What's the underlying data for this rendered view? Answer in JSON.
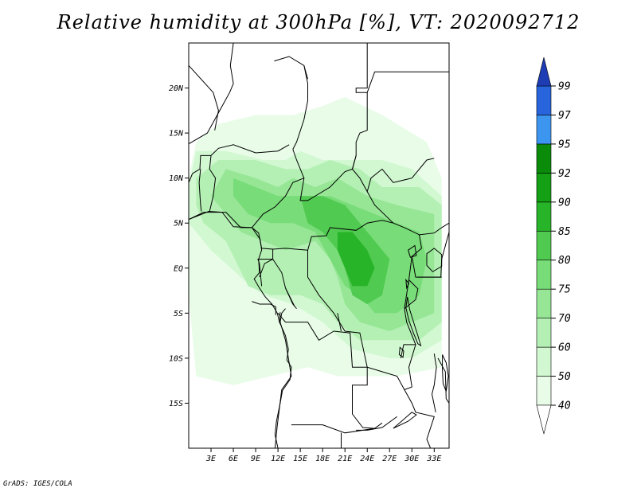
{
  "title": "Relative humidity at 300hPa [%], VT: 2020092712",
  "credit": "GrADS: IGES/COLA",
  "map": {
    "lon_range": [
      0,
      35
    ],
    "lat_range": [
      -20,
      25
    ],
    "lat_ticks": [
      {
        "value": 20,
        "label": "20N"
      },
      {
        "value": 15,
        "label": "15N"
      },
      {
        "value": 10,
        "label": "10N"
      },
      {
        "value": 5,
        "label": "5N"
      },
      {
        "value": 0,
        "label": "EQ"
      },
      {
        "value": -5,
        "label": "5S"
      },
      {
        "value": -10,
        "label": "10S"
      },
      {
        "value": -15,
        "label": "15S"
      }
    ],
    "lon_ticks": [
      {
        "value": 3,
        "label": "3E"
      },
      {
        "value": 6,
        "label": "6E"
      },
      {
        "value": 9,
        "label": "9E"
      },
      {
        "value": 12,
        "label": "12E"
      },
      {
        "value": 15,
        "label": "15E"
      },
      {
        "value": 18,
        "label": "18E"
      },
      {
        "value": 21,
        "label": "21E"
      },
      {
        "value": 24,
        "label": "24E"
      },
      {
        "value": 27,
        "label": "27E"
      },
      {
        "value": 30,
        "label": "30E"
      },
      {
        "value": 33,
        "label": "33E"
      }
    ]
  },
  "colorbar": {
    "labels": [
      "40",
      "50",
      "60",
      "70",
      "75",
      "80",
      "85",
      "90",
      "92",
      "95",
      "97",
      "99"
    ],
    "colors": [
      "#ffffff",
      "#e8fce8",
      "#d2f8d2",
      "#b4f0b4",
      "#96e696",
      "#78dc78",
      "#50ca50",
      "#28b428",
      "#14a014",
      "#0a8c0a",
      "#3c96f0",
      "#2864dc",
      "#1e3cb4"
    ]
  },
  "humidity_regions": [
    {
      "level": 1,
      "points": [
        [
          1,
          14
        ],
        [
          4,
          16
        ],
        [
          9,
          17
        ],
        [
          14,
          17
        ],
        [
          18,
          18
        ],
        [
          21,
          19
        ],
        [
          26,
          17
        ],
        [
          32,
          14
        ],
        [
          34,
          10
        ],
        [
          34,
          -11
        ],
        [
          28,
          -12
        ],
        [
          24,
          -12
        ],
        [
          20,
          -12
        ],
        [
          16,
          -11
        ],
        [
          11,
          -12
        ],
        [
          6,
          -13
        ],
        [
          1,
          -12
        ],
        [
          0,
          -3
        ],
        [
          0,
          10
        ]
      ]
    },
    {
      "level": 2,
      "points": [
        [
          1,
          13
        ],
        [
          5,
          13
        ],
        [
          10,
          12
        ],
        [
          13,
          12
        ],
        [
          15,
          13
        ],
        [
          18,
          12
        ],
        [
          22,
          12
        ],
        [
          26,
          12
        ],
        [
          30,
          11
        ],
        [
          34,
          8
        ],
        [
          34,
          -8
        ],
        [
          30,
          -10
        ],
        [
          27,
          -10
        ],
        [
          22,
          -9
        ],
        [
          18,
          -6
        ],
        [
          14,
          -4
        ],
        [
          10,
          -3
        ],
        [
          7,
          -1
        ],
        [
          3,
          2
        ],
        [
          0,
          5
        ],
        [
          0,
          9
        ]
      ]
    },
    {
      "level": 3,
      "points": [
        [
          4,
          12
        ],
        [
          9,
          12
        ],
        [
          13,
          11
        ],
        [
          16,
          11
        ],
        [
          19,
          12
        ],
        [
          23,
          11
        ],
        [
          26,
          9
        ],
        [
          31,
          9
        ],
        [
          34,
          7
        ],
        [
          34,
          -6
        ],
        [
          31,
          -8
        ],
        [
          27,
          -8
        ],
        [
          23,
          -8
        ],
        [
          20,
          -6
        ],
        [
          18,
          -4
        ],
        [
          15,
          -3
        ],
        [
          11,
          -3
        ],
        [
          8,
          -2
        ],
        [
          5,
          3
        ],
        [
          2,
          5
        ],
        [
          1,
          7
        ],
        [
          1,
          10
        ]
      ]
    },
    {
      "level": 4,
      "points": [
        [
          5,
          11
        ],
        [
          9,
          10
        ],
        [
          12,
          9
        ],
        [
          14,
          10
        ],
        [
          17,
          9
        ],
        [
          20,
          10
        ],
        [
          22,
          9
        ],
        [
          24,
          8
        ],
        [
          28,
          7
        ],
        [
          33,
          6
        ],
        [
          33,
          -5
        ],
        [
          30,
          -6
        ],
        [
          27,
          -7
        ],
        [
          23,
          -6
        ],
        [
          21,
          -4
        ],
        [
          20,
          -1
        ],
        [
          19,
          1
        ],
        [
          17,
          3
        ],
        [
          13,
          2
        ],
        [
          10,
          3
        ],
        [
          7,
          4
        ],
        [
          5,
          6
        ],
        [
          3,
          8
        ]
      ]
    },
    {
      "level": 5,
      "points": [
        [
          6,
          10
        ],
        [
          9,
          9
        ],
        [
          12,
          8
        ],
        [
          16,
          8
        ],
        [
          19,
          8
        ],
        [
          22,
          7
        ],
        [
          25,
          6
        ],
        [
          28,
          5
        ],
        [
          31,
          4
        ],
        [
          32,
          1
        ],
        [
          31,
          -3
        ],
        [
          28,
          -5
        ],
        [
          25,
          -5
        ],
        [
          23,
          -3
        ],
        [
          21,
          -2
        ],
        [
          19,
          1
        ],
        [
          17,
          4
        ],
        [
          14,
          5
        ],
        [
          11,
          5
        ],
        [
          8,
          6
        ],
        [
          6,
          8
        ]
      ]
    },
    {
      "level": 6,
      "points": [
        [
          15,
          8
        ],
        [
          18,
          8
        ],
        [
          21,
          7
        ],
        [
          23,
          5
        ],
        [
          25,
          3
        ],
        [
          27,
          1
        ],
        [
          26,
          -3
        ],
        [
          24,
          -4
        ],
        [
          22,
          -3
        ],
        [
          21,
          0
        ],
        [
          20,
          2
        ],
        [
          18,
          4
        ],
        [
          16,
          5
        ]
      ]
    },
    {
      "level": 7,
      "points": [
        [
          20,
          4
        ],
        [
          22,
          4
        ],
        [
          24,
          2
        ],
        [
          25,
          0
        ],
        [
          24,
          -2
        ],
        [
          22,
          -2
        ],
        [
          21,
          0
        ],
        [
          20,
          2
        ]
      ]
    }
  ],
  "borders": [
    [
      [
        0,
        13.8
      ],
      [
        2.5,
        15
      ],
      [
        4.5,
        18
      ],
      [
        5.5,
        19.5
      ],
      [
        6,
        20.5
      ],
      [
        5.6,
        22.5
      ],
      [
        6,
        25
      ]
    ],
    [
      [
        11.5,
        23
      ],
      [
        13.5,
        23.5
      ],
      [
        15.5,
        22.5
      ],
      [
        16,
        21
      ]
    ],
    [
      [
        0,
        22.5
      ],
      [
        3.3,
        19.5
      ],
      [
        4,
        17.5
      ],
      [
        3.5,
        15.3
      ]
    ],
    [
      [
        15.5,
        22.5
      ],
      [
        16,
        20.5
      ],
      [
        16,
        18.6
      ],
      [
        15.5,
        16.5
      ],
      [
        14.5,
        14
      ],
      [
        14,
        13.2
      ]
    ],
    [
      [
        24,
        25
      ],
      [
        24,
        20
      ],
      [
        22.5,
        20
      ],
      [
        22.5,
        19.5
      ],
      [
        24,
        19.5
      ],
      [
        24,
        15.3
      ],
      [
        23,
        15
      ],
      [
        22.5,
        14
      ],
      [
        22.5,
        12.5
      ],
      [
        22,
        11
      ]
    ],
    [
      [
        24,
        19.5
      ],
      [
        25,
        21.8
      ],
      [
        35,
        21.8
      ]
    ],
    [
      [
        0,
        9.5
      ],
      [
        0.5,
        10.5
      ],
      [
        1.5,
        11
      ],
      [
        1.6,
        12.5
      ],
      [
        3,
        12.5
      ],
      [
        4,
        13.3
      ],
      [
        6,
        13.7
      ],
      [
        9,
        12.8
      ],
      [
        12,
        13
      ],
      [
        13.5,
        13.7
      ]
    ],
    [
      [
        3,
        12.5
      ],
      [
        2.8,
        11
      ],
      [
        3.6,
        10
      ],
      [
        3.3,
        8
      ],
      [
        2.8,
        6.3
      ]
    ],
    [
      [
        1.6,
        11
      ],
      [
        1.4,
        9.5
      ],
      [
        1.6,
        7
      ],
      [
        1.7,
        6.3
      ]
    ],
    [
      [
        0,
        5.4
      ],
      [
        2.7,
        6.3
      ],
      [
        4.5,
        6.2
      ],
      [
        6,
        4.6
      ],
      [
        8.5,
        4.5
      ],
      [
        9.4,
        3.9
      ],
      [
        9.8,
        2.2
      ],
      [
        11.3,
        2.1
      ],
      [
        11.3,
        1
      ],
      [
        9.3,
        1
      ],
      [
        9.5,
        0.5
      ],
      [
        9.8,
        -2
      ]
    ],
    [
      [
        11.3,
        2.1
      ],
      [
        13,
        2.2
      ],
      [
        16,
        2
      ],
      [
        16.5,
        3.5
      ],
      [
        18.5,
        3.6
      ],
      [
        19,
        4.5
      ],
      [
        22.5,
        4.2
      ],
      [
        24,
        5
      ],
      [
        26,
        5.3
      ],
      [
        27.5,
        5
      ]
    ],
    [
      [
        8.5,
        4.5
      ],
      [
        10,
        6
      ],
      [
        11.6,
        6.8
      ],
      [
        13,
        8
      ],
      [
        14,
        9.5
      ],
      [
        15.5,
        10
      ],
      [
        14.5,
        12
      ],
      [
        14,
        13.2
      ]
    ],
    [
      [
        15.5,
        10
      ],
      [
        15,
        7.5
      ],
      [
        16,
        7.5
      ],
      [
        19,
        9
      ],
      [
        21,
        10.7
      ],
      [
        22,
        11
      ],
      [
        23,
        10
      ],
      [
        24,
        8.5
      ],
      [
        25,
        7
      ],
      [
        27.5,
        5
      ]
    ],
    [
      [
        22,
        11
      ],
      [
        22.5,
        12.5
      ]
    ],
    [
      [
        27.5,
        5
      ],
      [
        29,
        4.5
      ],
      [
        31,
        3.7
      ],
      [
        33,
        3.9
      ],
      [
        34,
        4.5
      ],
      [
        35,
        5
      ]
    ],
    [
      [
        24,
        8.5
      ],
      [
        24.5,
        10
      ],
      [
        26,
        11
      ],
      [
        27.5,
        9.5
      ],
      [
        30,
        10
      ],
      [
        32,
        12
      ],
      [
        33,
        12.2
      ]
    ],
    [
      [
        31,
        3.7
      ],
      [
        31.3,
        2.2
      ],
      [
        30,
        1.3
      ],
      [
        29.6,
        -1.3
      ],
      [
        29,
        -4.5
      ],
      [
        29.3,
        -6
      ],
      [
        30.5,
        -8.5
      ],
      [
        28.9,
        -8.5
      ],
      [
        28.5,
        -10
      ]
    ],
    [
      [
        30,
        1.3
      ],
      [
        30.5,
        -1
      ],
      [
        33.9,
        -1
      ],
      [
        34,
        1
      ],
      [
        35,
        4
      ]
    ],
    [
      [
        29.6,
        -1.3
      ],
      [
        30.8,
        -2.3
      ],
      [
        30.5,
        -3.5
      ],
      [
        29,
        -4.5
      ]
    ],
    [
      [
        30.8,
        -1
      ],
      [
        34,
        -1
      ]
    ],
    [
      [
        16,
        2
      ],
      [
        16,
        -1
      ],
      [
        17.5,
        -3
      ],
      [
        19.5,
        -5
      ],
      [
        21,
        -7
      ],
      [
        23,
        -7.2
      ],
      [
        24,
        -11
      ],
      [
        26,
        -11.5
      ],
      [
        28,
        -12
      ],
      [
        29,
        -13.5
      ],
      [
        30,
        -13.2
      ],
      [
        29.6,
        -11
      ],
      [
        30.5,
        -8.5
      ]
    ],
    [
      [
        13,
        -4.5
      ],
      [
        12.5,
        -5
      ],
      [
        12.3,
        -6
      ],
      [
        13,
        -8
      ],
      [
        13.5,
        -10.5
      ],
      [
        13.8,
        -12
      ],
      [
        12.5,
        -13.5
      ],
      [
        11.9,
        -17.5
      ],
      [
        11.6,
        -20
      ]
    ],
    [
      [
        12,
        -5
      ],
      [
        13,
        -6
      ],
      [
        16,
        -6
      ],
      [
        17.5,
        -8
      ],
      [
        19.5,
        -7
      ],
      [
        21.7,
        -7.2
      ],
      [
        22,
        -11
      ],
      [
        24,
        -11
      ],
      [
        24,
        -13
      ],
      [
        22,
        -13
      ],
      [
        22,
        -16.2
      ],
      [
        23.4,
        -17.7
      ],
      [
        25,
        -17.8
      ],
      [
        26,
        -17.2
      ]
    ],
    [
      [
        13.8,
        -17.4
      ],
      [
        18,
        -17.4
      ],
      [
        21,
        -18.3
      ],
      [
        25,
        -17.8
      ]
    ],
    [
      [
        20.5,
        -18.3
      ],
      [
        20.5,
        -20
      ]
    ],
    [
      [
        29,
        -13.5
      ],
      [
        30,
        -15
      ],
      [
        30.5,
        -16
      ],
      [
        33,
        -16.5
      ],
      [
        32,
        -19
      ],
      [
        33,
        -21
      ]
    ],
    [
      [
        22.5,
        -18
      ],
      [
        24,
        -18
      ],
      [
        26,
        -17.7
      ],
      [
        28,
        -16.5
      ]
    ],
    [
      [
        33,
        -9.5
      ],
      [
        33.3,
        -11
      ],
      [
        33,
        -13
      ],
      [
        32.7,
        -14
      ],
      [
        33.2,
        -16
      ]
    ],
    [
      [
        33.5,
        -10
      ],
      [
        34.5,
        -11.5
      ],
      [
        34.6,
        -14.5
      ],
      [
        35,
        -15
      ]
    ],
    [
      [
        8.5,
        -3.7
      ],
      [
        9.5,
        -4
      ],
      [
        11,
        -4
      ],
      [
        11.7,
        -4.3
      ],
      [
        11.7,
        -5.2
      ]
    ],
    [
      [
        9.5,
        -1
      ],
      [
        10.2,
        0.5
      ],
      [
        11.3,
        1
      ],
      [
        12.5,
        -0.5
      ],
      [
        13,
        -2.2
      ],
      [
        14,
        -4
      ],
      [
        14.5,
        -4.5
      ]
    ],
    [
      [
        13,
        -2.2
      ],
      [
        14.2,
        -4.2
      ]
    ],
    [
      [
        20,
        -5
      ],
      [
        20.5,
        -7
      ]
    ],
    [
      [
        12.2,
        -6.1
      ],
      [
        12.3,
        -4.9
      ]
    ]
  ],
  "coastline": [
    [
      0,
      5.4
    ],
    [
      2,
      6.2
    ],
    [
      5,
      6.2
    ],
    [
      7,
      4.5
    ],
    [
      8.5,
      4.5
    ],
    [
      9.6,
      3.2
    ],
    [
      9.8,
      2
    ],
    [
      9.4,
      1
    ],
    [
      9.5,
      -0.5
    ],
    [
      8.8,
      -1.2
    ],
    [
      9.5,
      -2.2
    ],
    [
      10.3,
      -3.2
    ],
    [
      11.2,
      -4
    ],
    [
      11.9,
      -5
    ],
    [
      12.2,
      -6
    ],
    [
      13,
      -7.5
    ],
    [
      13.4,
      -9
    ],
    [
      13.2,
      -10.2
    ],
    [
      13.8,
      -11
    ],
    [
      13.6,
      -12.4
    ],
    [
      12.6,
      -13.6
    ],
    [
      12.3,
      -15
    ],
    [
      11.8,
      -17
    ],
    [
      11.6,
      -18.5
    ],
    [
      12,
      -20
    ]
  ],
  "lakes": [
    [
      [
        32,
        1.6
      ],
      [
        33,
        2.2
      ],
      [
        34,
        1.5
      ],
      [
        34,
        0.2
      ],
      [
        32.8,
        -0.4
      ],
      [
        32,
        0.3
      ]
    ],
    [
      [
        29.4,
        -3.2
      ],
      [
        29.7,
        -4.6
      ],
      [
        30.3,
        -6.2
      ],
      [
        30.8,
        -7.5
      ],
      [
        31.2,
        -8.6
      ],
      [
        30.8,
        -8.4
      ],
      [
        30.2,
        -7.2
      ],
      [
        29.6,
        -5.8
      ],
      [
        29.2,
        -4.4
      ]
    ],
    [
      [
        34.1,
        -9.6
      ],
      [
        34.6,
        -10.5
      ],
      [
        34.9,
        -12
      ],
      [
        34.6,
        -13.7
      ],
      [
        34.2,
        -12.8
      ],
      [
        34.1,
        -11.3
      ]
    ],
    [
      [
        28.4,
        -8.8
      ],
      [
        28.9,
        -9.2
      ],
      [
        28.8,
        -9.9
      ],
      [
        28.3,
        -9.6
      ]
    ],
    [
      [
        30,
        -16
      ],
      [
        30.6,
        -16.3
      ],
      [
        29.5,
        -17
      ],
      [
        27.5,
        -17.8
      ]
    ],
    [
      [
        29.2,
        -1.3
      ],
      [
        29.6,
        -1.7
      ],
      [
        29.3,
        -2.2
      ]
    ],
    [
      [
        29.5,
        2
      ],
      [
        30.4,
        2.5
      ],
      [
        30.6,
        1.4
      ],
      [
        29.8,
        1.2
      ]
    ]
  ]
}
